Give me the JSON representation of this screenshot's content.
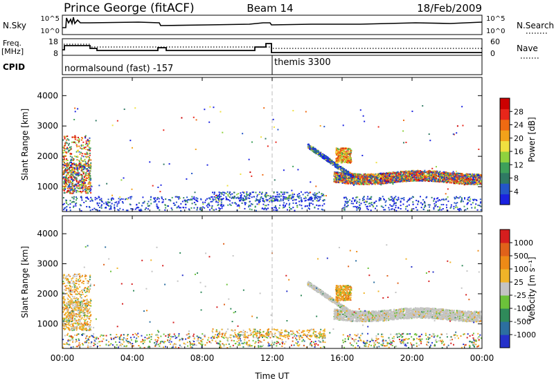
{
  "header": {
    "station": "Prince George (fitACF)",
    "beam": "Beam 14",
    "date": "18/Feb/2009"
  },
  "top_panels": {
    "nsky_label": "N.Sky",
    "nsky_ticks": [
      "10^5",
      "10^0"
    ],
    "nsearch_label": "N.Search",
    "nsearch_ticks": [
      "10^5",
      "10^0"
    ],
    "freq_label": "Freq.",
    "freq_unit": "[MHz]",
    "freq_ticks": [
      "18",
      "8"
    ],
    "nave_label": "Nave",
    "nave_ticks": [
      "60",
      "0"
    ],
    "cpid_label": "CPID",
    "cpid_segments": [
      {
        "label": "normalsound (fast) -157",
        "start_hour": 0
      },
      {
        "label": "themis 3300",
        "start_hour": 12
      }
    ]
  },
  "chart_data": [
    {
      "type": "heatmap",
      "name": "power",
      "ylabel": "Slant Range [km]",
      "xlabel": "Time UT",
      "xlim_hours": [
        0,
        24
      ],
      "ylim": [
        180,
        4600
      ],
      "y_ticks": [
        "1000",
        "2000",
        "3000",
        "4000"
      ],
      "colorbar": {
        "label": "Power [dB]",
        "ticks": [
          "28",
          "24",
          "20",
          "16",
          "12",
          "8",
          "4"
        ],
        "colors": [
          "#1a22e0",
          "#2456c8",
          "#2f7a63",
          "#3ea05a",
          "#8fd23e",
          "#f0e040",
          "#f2a21a",
          "#ef6a12",
          "#e8261a",
          "#cc0000"
        ]
      }
    },
    {
      "type": "heatmap",
      "name": "velocity",
      "ylabel": "Slant Range [km]",
      "xlabel": "Time UT",
      "xlim_hours": [
        0,
        24
      ],
      "ylim": [
        180,
        4600
      ],
      "y_ticks": [
        "1000",
        "2000",
        "3000",
        "4000"
      ],
      "colorbar": {
        "label": "Velocity [m s⁻¹]",
        "ticks": [
          "1000",
          "500",
          "100",
          "25",
          "-25",
          "-100",
          "-500",
          "-1000"
        ],
        "colors": [
          "#2531c9",
          "#2c6fa0",
          "#2f8a5a",
          "#6cc23a",
          "#c4c4c4",
          "#f0b428",
          "#ee8a16",
          "#e0621a",
          "#d61e1e"
        ]
      }
    }
  ],
  "x_ticks": [
    "00:00",
    "04:00",
    "08:00",
    "12:00",
    "16:00",
    "20:00",
    "00:00"
  ],
  "x_axis_label": "Time UT"
}
